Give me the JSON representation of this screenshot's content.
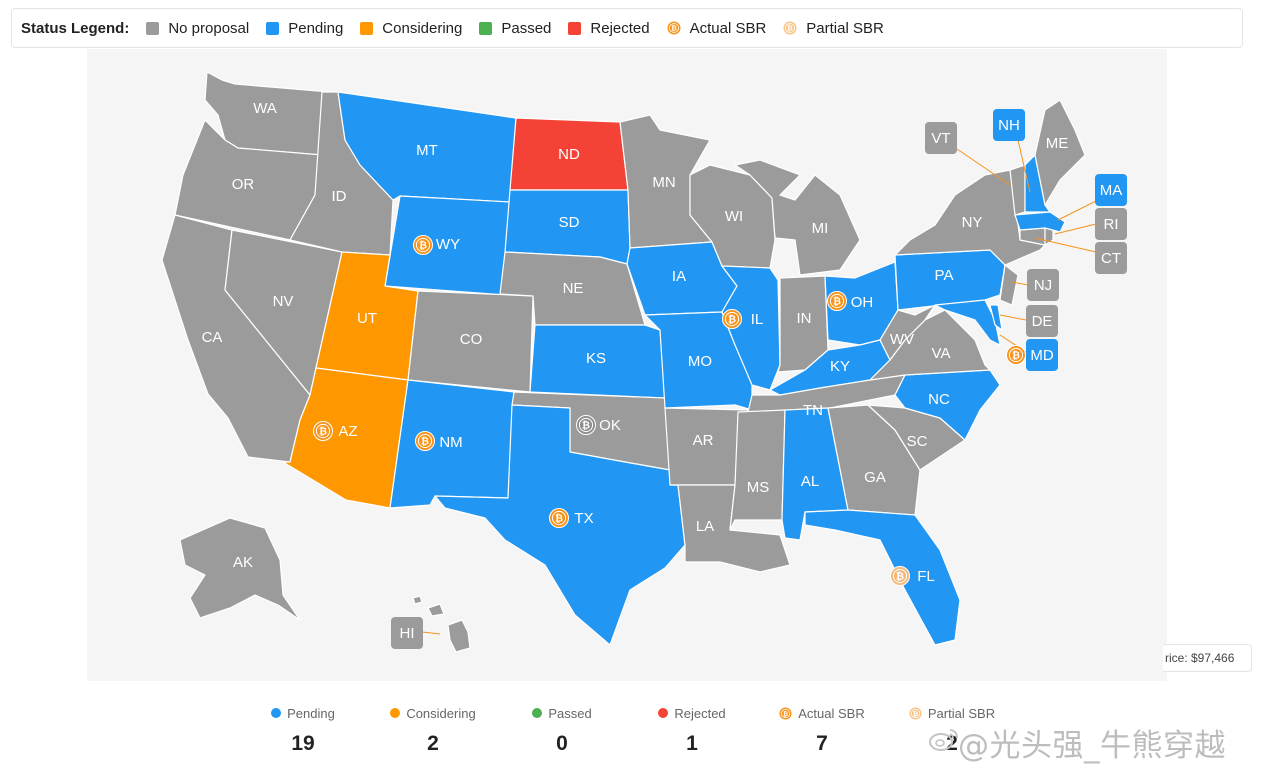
{
  "legend": {
    "title": "Status Legend:",
    "items": [
      {
        "label": "No proposal",
        "kind": "square",
        "color": "#9b9b9b"
      },
      {
        "label": "Pending",
        "kind": "square",
        "color": "#2196f3"
      },
      {
        "label": "Considering",
        "kind": "square",
        "color": "#ff9800"
      },
      {
        "label": "Passed",
        "kind": "square",
        "color": "#4caf50"
      },
      {
        "label": "Rejected",
        "kind": "square",
        "color": "#f44336"
      },
      {
        "label": "Actual SBR",
        "kind": "bitcoin-icon",
        "color": "#f7931a"
      },
      {
        "label": "Partial SBR",
        "kind": "bitcoin-partial-icon",
        "color": "#f7c48a"
      }
    ]
  },
  "colors": {
    "no_proposal": "#9b9b9b",
    "pending": "#2196f3",
    "considering": "#ff9800",
    "passed": "#4caf50",
    "rejected": "#f44336",
    "actual_sbr": "#f7931a",
    "partial_sbr": "#f7c48a"
  },
  "states": {
    "WA": "WA",
    "OR": "OR",
    "CA": "CA",
    "NV": "NV",
    "ID": "ID",
    "MT": "MT",
    "WY": "WY",
    "UT": "UT",
    "AZ": "AZ",
    "CO": "CO",
    "NM": "NM",
    "ND": "ND",
    "SD": "SD",
    "NE": "NE",
    "KS": "KS",
    "OK": "OK",
    "TX": "TX",
    "MN": "MN",
    "IA": "IA",
    "MO": "MO",
    "AR": "AR",
    "LA": "LA",
    "WI": "WI",
    "IL": "IL",
    "MI": "MI",
    "IN": "IN",
    "OH": "OH",
    "KY": "KY",
    "TN": "TN",
    "MS": "MS",
    "AL": "AL",
    "GA": "GA",
    "FL": "FL",
    "SC": "SC",
    "NC": "NC",
    "VA": "VA",
    "WV": "WV",
    "PA": "PA",
    "NY": "NY",
    "ME": "ME",
    "AK": "AK",
    "HI": "HI",
    "VT": "VT",
    "NH": "NH",
    "MA": "MA",
    "RI": "RI",
    "CT": "CT",
    "NJ": "NJ",
    "DE": "DE",
    "MD": "MD"
  },
  "price": "rice: $97,466",
  "summary": [
    {
      "label": "Pending",
      "value": "19",
      "marker": "dot",
      "color": "#2196f3"
    },
    {
      "label": "Considering",
      "value": "2",
      "marker": "dot",
      "color": "#ff9800"
    },
    {
      "label": "Passed",
      "value": "0",
      "marker": "dot",
      "color": "#4caf50"
    },
    {
      "label": "Rejected",
      "value": "1",
      "marker": "dot",
      "color": "#f44336"
    },
    {
      "label": "Actual SBR",
      "value": "7",
      "marker": "bitcoin-icon",
      "color": "#f7931a"
    },
    {
      "label": "Partial SBR",
      "value": "2",
      "marker": "bitcoin-partial-icon",
      "color": "#f7c48a"
    }
  ],
  "watermark": "@光头强_牛熊穿越"
}
